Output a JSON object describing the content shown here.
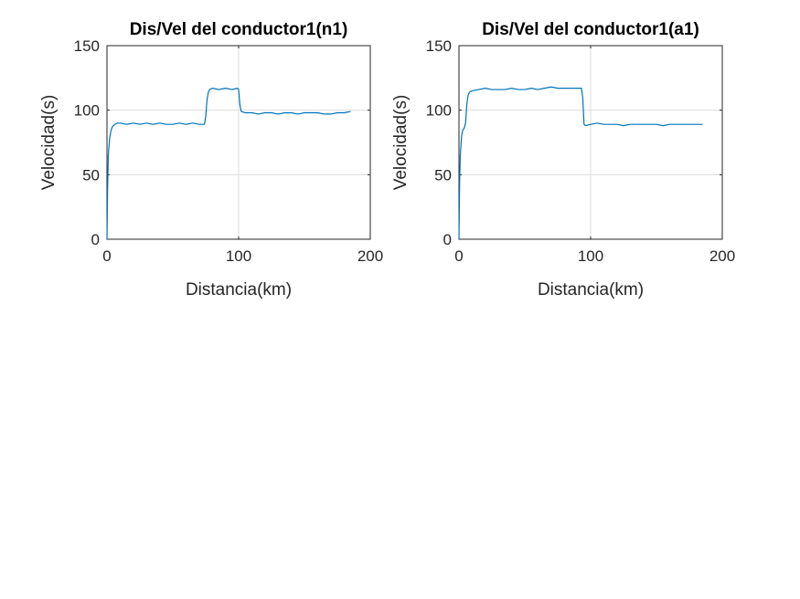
{
  "chart_data": [
    {
      "type": "line",
      "title": "Dis/Vel del conductor1(n1)",
      "xlabel": "Distancia(km)",
      "ylabel": "Velocidad(s)",
      "xlim": [
        0,
        200
      ],
      "ylim": [
        0,
        150
      ],
      "xticks": [
        0,
        100,
        200
      ],
      "yticks": [
        0,
        50,
        100,
        150
      ],
      "grid": true,
      "color": "#0072BD",
      "series": [
        {
          "x": [
            0,
            0.5,
            1,
            2,
            3,
            4,
            6,
            8,
            10,
            15,
            20,
            25,
            30,
            35,
            40,
            45,
            50,
            55,
            60,
            65,
            70,
            74,
            75,
            76,
            77,
            78,
            80,
            85,
            90,
            95,
            99,
            100,
            101,
            102,
            105,
            110,
            115,
            120,
            125,
            130,
            135,
            140,
            145,
            150,
            155,
            160,
            165,
            170,
            175,
            180,
            185
          ],
          "y": [
            0,
            40,
            65,
            78,
            84,
            87,
            89,
            90,
            90,
            89,
            90,
            89,
            90,
            89,
            90,
            89,
            89,
            90,
            89,
            90,
            89,
            89,
            95,
            108,
            114,
            116,
            117,
            116,
            117,
            116,
            117,
            116,
            104,
            99,
            98,
            98,
            97,
            98,
            98,
            97,
            98,
            98,
            97,
            98,
            98,
            98,
            97,
            97,
            98,
            98,
            99
          ]
        }
      ]
    },
    {
      "type": "line",
      "title": "Dis/Vel del conductor1(a1)",
      "xlabel": "Distancia(km)",
      "ylabel": "Velocidad(s)",
      "xlim": [
        0,
        200
      ],
      "ylim": [
        0,
        150
      ],
      "xticks": [
        0,
        100,
        200
      ],
      "yticks": [
        0,
        50,
        100,
        150
      ],
      "grid": true,
      "color": "#0072BD",
      "series": [
        {
          "x": [
            0,
            0.5,
            1,
            2,
            3,
            4,
            5,
            6,
            7,
            8,
            10,
            15,
            20,
            25,
            30,
            35,
            40,
            45,
            50,
            55,
            60,
            65,
            70,
            75,
            80,
            85,
            90,
            93,
            94,
            95,
            96,
            100,
            105,
            110,
            115,
            120,
            125,
            130,
            135,
            140,
            145,
            150,
            155,
            160,
            165,
            170,
            175,
            180,
            185
          ],
          "y": [
            0,
            45,
            65,
            80,
            85,
            86,
            90,
            105,
            112,
            114,
            115,
            116,
            117,
            116,
            116,
            116,
            117,
            116,
            116,
            117,
            116,
            117,
            118,
            117,
            117,
            117,
            117,
            117,
            110,
            89,
            88,
            89,
            90,
            89,
            89,
            89,
            88,
            89,
            89,
            89,
            89,
            89,
            88,
            89,
            89,
            89,
            89,
            89,
            89
          ]
        }
      ]
    }
  ]
}
